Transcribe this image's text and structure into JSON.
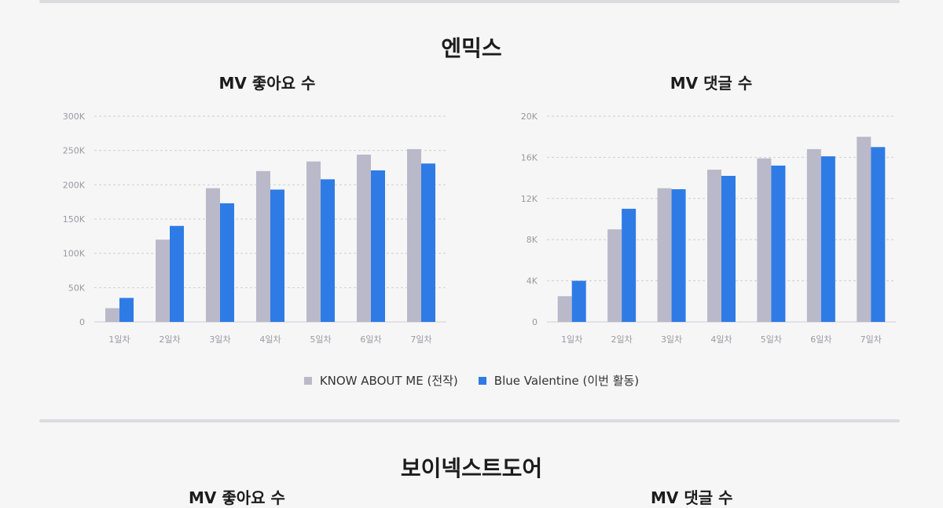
{
  "section1_title": "엔믹스",
  "section2_title": "보이넥스트도어",
  "colors": {
    "series1": "#b9b9c9",
    "series2": "#2f7be6",
    "grid": "#cfcfd4"
  },
  "legend": [
    {
      "label": "KNOW ABOUT ME (전작)"
    },
    {
      "label": "Blue Valentine (이번 활동)"
    }
  ],
  "chart_data": [
    {
      "type": "bar",
      "title": "MV 좋아요 수",
      "categories": [
        "1일차",
        "2일차",
        "3일차",
        "4일차",
        "5일차",
        "6일차",
        "7일차"
      ],
      "series": [
        {
          "name": "KNOW ABOUT ME (전작)",
          "values": [
            20000,
            120000,
            195000,
            220000,
            234000,
            244000,
            252000
          ]
        },
        {
          "name": "Blue Valentine (이번 활동)",
          "values": [
            35000,
            140000,
            173000,
            193000,
            208000,
            221000,
            231000
          ]
        }
      ],
      "ylim": [
        0,
        300000
      ],
      "yticks": [
        0,
        50000,
        100000,
        150000,
        200000,
        250000,
        300000
      ],
      "ytick_labels": [
        "0",
        "50K",
        "100K",
        "150K",
        "200K",
        "250K",
        "300K"
      ]
    },
    {
      "type": "bar",
      "title": "MV 댓글 수",
      "categories": [
        "1일차",
        "2일차",
        "3일차",
        "4일차",
        "5일차",
        "6일차",
        "7일차"
      ],
      "series": [
        {
          "name": "KNOW ABOUT ME (전작)",
          "values": [
            2500,
            9000,
            13000,
            14800,
            15900,
            16800,
            18000
          ]
        },
        {
          "name": "Blue Valentine (이번 활동)",
          "values": [
            4000,
            11000,
            12900,
            14200,
            15200,
            16100,
            17000
          ]
        }
      ],
      "ylim": [
        0,
        20000
      ],
      "yticks": [
        0,
        4000,
        8000,
        12000,
        16000,
        20000
      ],
      "ytick_labels": [
        "0",
        "4K",
        "8K",
        "12K",
        "16K",
        "20K"
      ]
    }
  ],
  "partial_titles": [
    "MV 좋아요 수",
    "MV 댓글 수"
  ]
}
